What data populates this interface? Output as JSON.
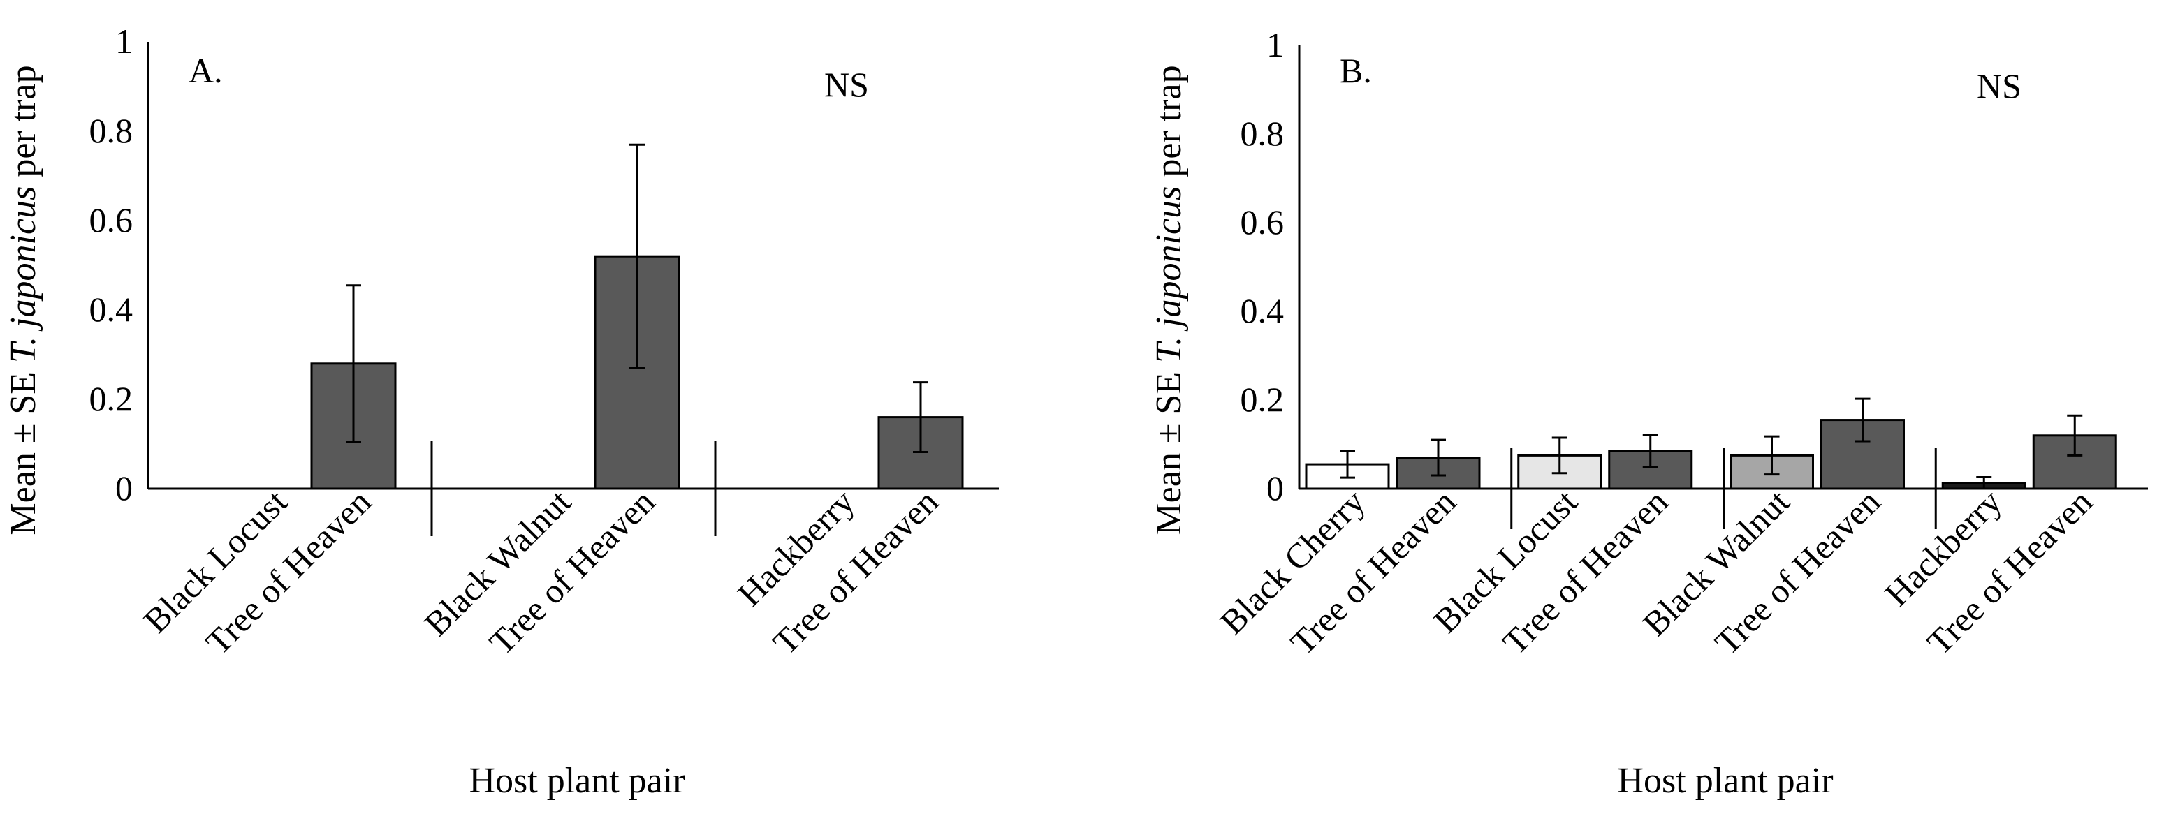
{
  "chart_data": [
    {
      "type": "bar",
      "panel_label": "A.",
      "significance": "NS",
      "xlabel": "Host plant pair",
      "ylabel_prefix": "Mean ± SE ",
      "ylabel_italic": "T. japonicus",
      "ylabel_suffix": " per trap",
      "ylim": [
        0,
        1
      ],
      "yticks": [
        {
          "value": 0,
          "label": "0"
        },
        {
          "value": 0.2,
          "label": "0.2"
        },
        {
          "value": 0.4,
          "label": "0.4"
        },
        {
          "value": 0.6,
          "label": "0.6"
        },
        {
          "value": 0.8,
          "label": "0.8"
        },
        {
          "value": 1,
          "label": "1"
        }
      ],
      "groups": [
        {
          "bars": [
            {
              "category": "Black Locust",
              "value": 0,
              "se": 0,
              "color": "#ffffff"
            },
            {
              "category": "Tree of Heaven",
              "value": 0.28,
              "se": 0.175,
              "color": "#595959"
            }
          ]
        },
        {
          "bars": [
            {
              "category": "Black Walnut",
              "value": 0,
              "se": 0,
              "color": "#ffffff"
            },
            {
              "category": "Tree of Heaven",
              "value": 0.52,
              "se": 0.25,
              "color": "#595959"
            }
          ]
        },
        {
          "bars": [
            {
              "category": "Hackberry",
              "value": 0,
              "se": 0,
              "color": "#ffffff"
            },
            {
              "category": "Tree of Heaven",
              "value": 0.16,
              "se": 0.078,
              "color": "#595959"
            }
          ]
        }
      ]
    },
    {
      "type": "bar",
      "panel_label": "B.",
      "significance": "NS",
      "xlabel": "Host plant pair",
      "ylabel_prefix": "Mean ± SE ",
      "ylabel_italic": "T.  japonicus",
      "ylabel_suffix": " per trap",
      "ylim": [
        0,
        1
      ],
      "yticks": [
        {
          "value": 0,
          "label": "0"
        },
        {
          "value": 0.2,
          "label": "0.2"
        },
        {
          "value": 0.4,
          "label": "0.4"
        },
        {
          "value": 0.6,
          "label": "0.6"
        },
        {
          "value": 0.8,
          "label": "0.8"
        },
        {
          "value": 1,
          "label": "1"
        }
      ],
      "groups": [
        {
          "bars": [
            {
              "category": "Black Cherry",
              "value": 0.055,
              "se": 0.03,
              "color": "#ffffff"
            },
            {
              "category": "Tree of Heaven",
              "value": 0.07,
              "se": 0.04,
              "color": "#595959"
            }
          ]
        },
        {
          "bars": [
            {
              "category": "Black Locust",
              "value": 0.075,
              "se": 0.04,
              "color": "#e6e6e6"
            },
            {
              "category": "Tree of Heaven",
              "value": 0.085,
              "se": 0.037,
              "color": "#595959"
            }
          ]
        },
        {
          "bars": [
            {
              "category": "Black Walnut",
              "value": 0.075,
              "se": 0.043,
              "color": "#a6a6a6"
            },
            {
              "category": "Tree of Heaven",
              "value": 0.155,
              "se": 0.048,
              "color": "#595959"
            }
          ]
        },
        {
          "bars": [
            {
              "category": "Hackberry",
              "value": 0.012,
              "se": 0.014,
              "color": "#1a1a1a"
            },
            {
              "category": "Tree of Heaven",
              "value": 0.12,
              "se": 0.045,
              "color": "#595959"
            }
          ]
        }
      ]
    }
  ]
}
